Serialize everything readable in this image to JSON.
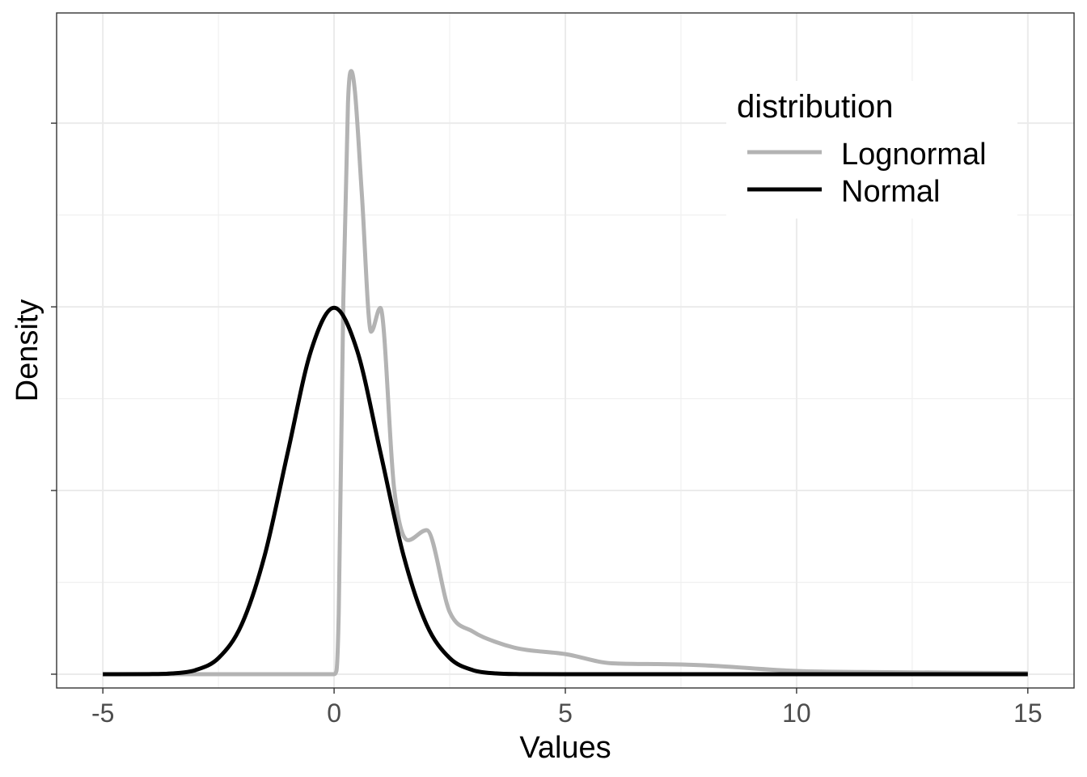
{
  "chart_data": {
    "type": "line",
    "title": "",
    "xlabel": "Values",
    "ylabel": "Density",
    "xlim": [
      -6.0,
      16.0
    ],
    "ylim": [
      -0.015,
      0.72
    ],
    "x_ticks": [
      -5,
      0,
      5,
      10,
      15
    ],
    "x_tick_labels": [
      "-5",
      "0",
      "5",
      "10",
      "15"
    ],
    "y_ticks": [
      0,
      0.2,
      0.4,
      0.6
    ],
    "y_minor_ticks": [
      0.1,
      0.3,
      0.5
    ],
    "y_tick_labels_shown": false,
    "grid": true,
    "legend": {
      "title": "distribution",
      "position": "top-right",
      "entries": [
        "Lognormal",
        "Normal"
      ]
    },
    "series": [
      {
        "name": "Lognormal",
        "color": "#b3b3b3",
        "x": [
          -5,
          0,
          0.05,
          0.1,
          0.2,
          0.3,
          0.37,
          0.45,
          0.6,
          0.8,
          1.0,
          1.3,
          1.6,
          2.0,
          2.5,
          3.0,
          3.5,
          4.0,
          5.0,
          6.0,
          7.0,
          8.0,
          10.0,
          12.0,
          15.0
        ],
        "y": [
          0,
          0,
          0.0035,
          0.0666,
          0.4084,
          0.6217,
          0.6568,
          0.6348,
          0.5225,
          0.3729,
          0.3989,
          0.2011,
          0.1459,
          0.1569,
          0.0677,
          0.0464,
          0.035,
          0.0278,
          0.0219,
          0.0119,
          0.011,
          0.0097,
          0.0035,
          0.0022,
          0.0012
        ]
      },
      {
        "name": "Normal",
        "color": "#000000",
        "x": [
          -5,
          -4,
          -3.5,
          -3,
          -2.5,
          -2,
          -1.5,
          -1,
          -0.5,
          0,
          0.5,
          1,
          1.5,
          2,
          2.5,
          3,
          3.5,
          4,
          5,
          15
        ],
        "y": [
          1.5e-06,
          0.0001338,
          0.0008727,
          0.0044318,
          0.0175283,
          0.053991,
          0.1295176,
          0.2419707,
          0.3520653,
          0.3989423,
          0.3520653,
          0.2419707,
          0.1295176,
          0.053991,
          0.0175283,
          0.0044318,
          0.0008727,
          0.0001338,
          1.5e-06,
          0
        ]
      }
    ]
  }
}
